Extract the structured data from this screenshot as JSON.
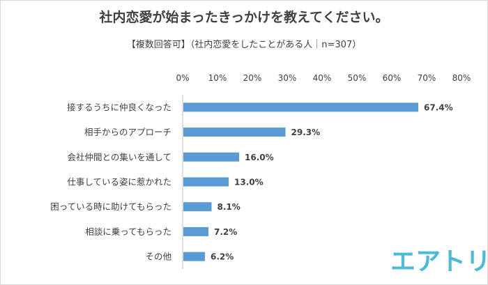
{
  "chart_data": {
    "type": "bar",
    "orientation": "horizontal",
    "title": "社内恋愛が始まったきっかけを教えてください。",
    "subtitle": "【複数回答可】（社内恋愛をしたことがある人｜n=307）",
    "categories": [
      "接するうちに仲良くなった",
      "相手からのアプローチ",
      "会社仲間との集いを通して",
      "仕事している姿に惹かれた",
      "困っている時に助けてもらった",
      "相談に乗ってもらった",
      "その他"
    ],
    "values": [
      67.4,
      29.3,
      16.0,
      13.0,
      8.1,
      7.2,
      6.2
    ],
    "value_labels": [
      "67.4%",
      "29.3%",
      "16.0%",
      "13.0%",
      "8.1%",
      "7.2%",
      "6.2%"
    ],
    "xlim": [
      0,
      80
    ],
    "xticks": [
      "0%",
      "10%",
      "20%",
      "30%",
      "40%",
      "50%",
      "60%",
      "70%",
      "80%"
    ],
    "xtick_values": [
      0,
      10,
      20,
      30,
      40,
      50,
      60,
      70,
      80
    ],
    "grid": false,
    "bar_color": "#5b9bd5"
  },
  "brand": {
    "logo_text": "エアトリ",
    "color": "#4fb9d6"
  }
}
